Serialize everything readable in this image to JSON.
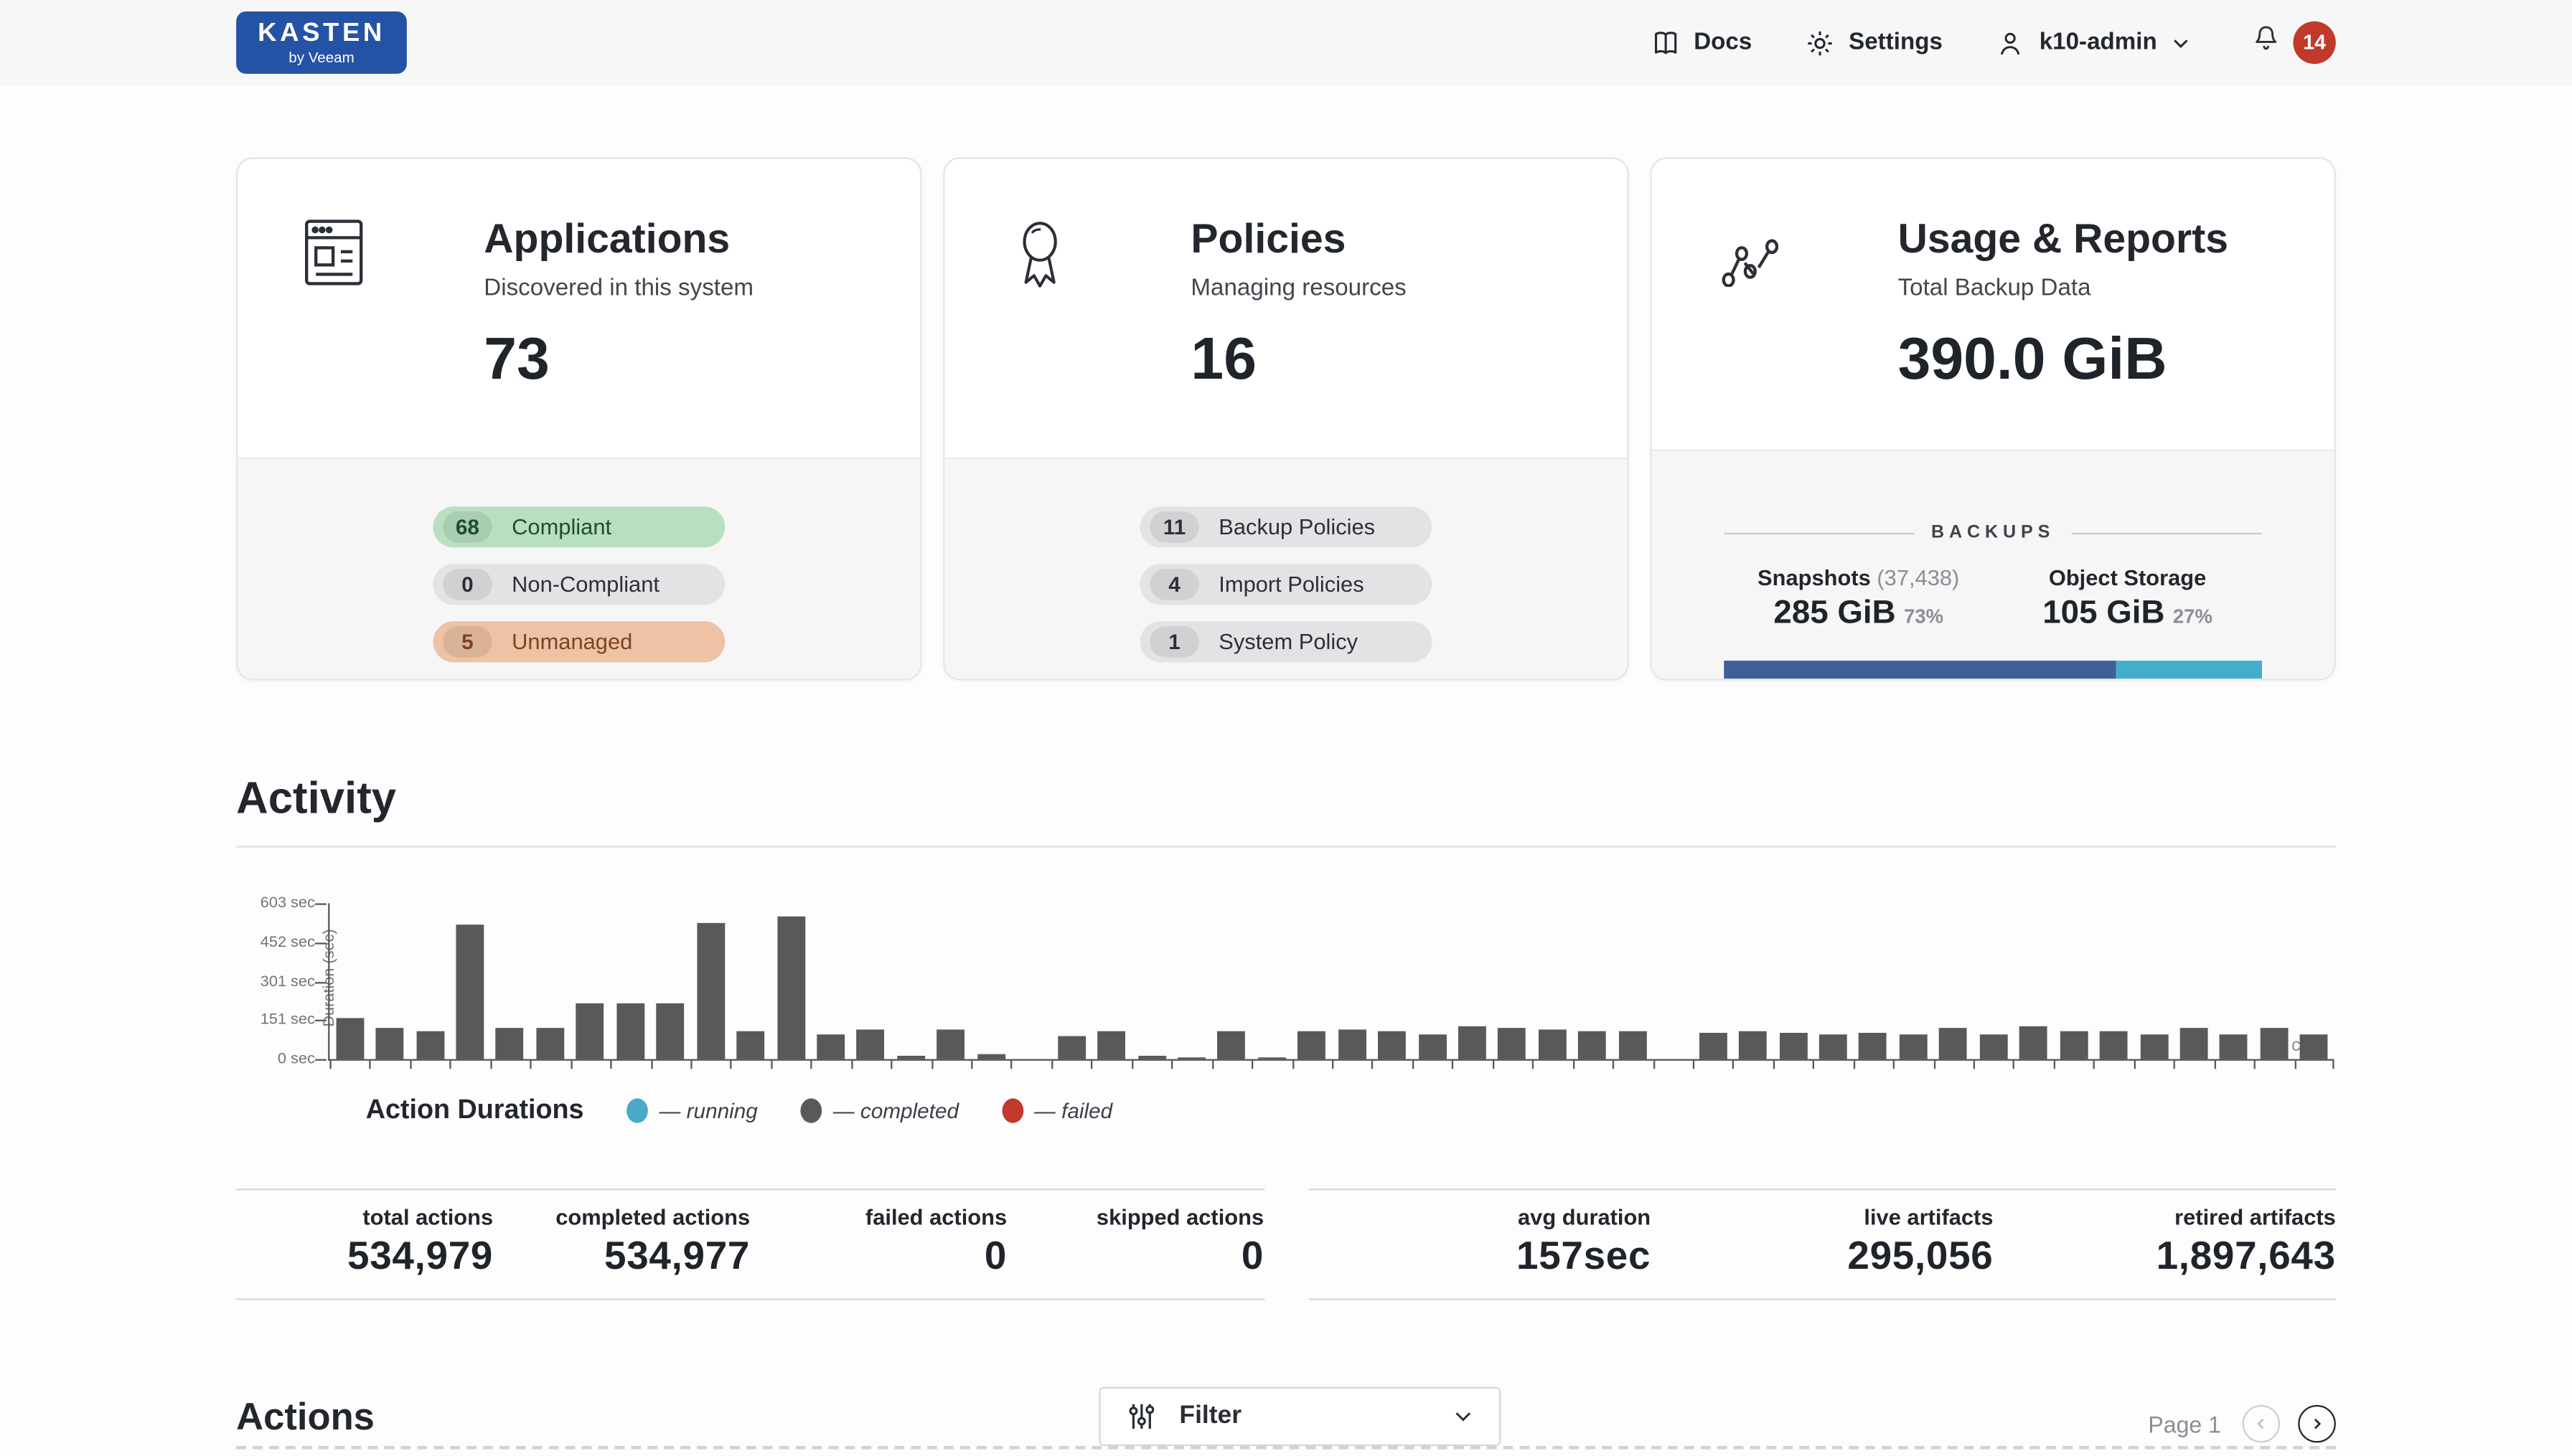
{
  "colors": {
    "brand_blue": "#2453a6",
    "badge_red": "#c0392b",
    "bar_grey": "#595959",
    "running_blue": "#4aa8c9",
    "failed_red": "#c0392b",
    "snapshots_bar": "#3d5e97",
    "object_storage_bar": "#44adcb"
  },
  "header": {
    "logo_line1": "KASTEN",
    "logo_line2": "by Veeam",
    "docs_label": "Docs",
    "settings_label": "Settings",
    "user_label": "k10-admin",
    "notification_count": "14"
  },
  "cards": {
    "applications": {
      "title": "Applications",
      "subtitle": "Discovered in this system",
      "count": "73",
      "badges": [
        {
          "count": "68",
          "label": "Compliant"
        },
        {
          "count": "0",
          "label": "Non-Compliant"
        },
        {
          "count": "5",
          "label": "Unmanaged"
        }
      ]
    },
    "policies": {
      "title": "Policies",
      "subtitle": "Managing resources",
      "count": "16",
      "badges": [
        {
          "count": "11",
          "label": "Backup Policies"
        },
        {
          "count": "4",
          "label": "Import Policies"
        },
        {
          "count": "1",
          "label": "System Policy"
        }
      ]
    },
    "usage": {
      "title": "Usage & Reports",
      "subtitle": "Total Backup Data",
      "count": "390.0 GiB",
      "section_label": "BACKUPS",
      "snapshots_label": "Snapshots",
      "snapshots_sublabel": "(37,438)",
      "snapshots_value": "285 GiB",
      "snapshots_percent": "73%",
      "object_label": "Object Storage",
      "object_value": "105 GiB",
      "object_percent": "27%"
    }
  },
  "activity": {
    "title": "Activity",
    "stats_left": [
      {
        "label": "total actions",
        "value": "534,979"
      },
      {
        "label": "completed actions",
        "value": "534,977"
      },
      {
        "label": "failed actions",
        "value": "0"
      },
      {
        "label": "skipped actions",
        "value": "0"
      }
    ],
    "stats_right": [
      {
        "label": "avg duration",
        "value": "157sec"
      },
      {
        "label": "live artifacts",
        "value": "295,056"
      },
      {
        "label": "retired artifacts",
        "value": "1,897,643"
      }
    ]
  },
  "chart_data": {
    "type": "bar",
    "title": "Action Durations",
    "ylabel": "Duration (sec)",
    "ylim": [
      0,
      603
    ],
    "yticks": [
      "603 sec",
      "452 sec",
      "301 sec",
      "151 sec",
      "0 sec"
    ],
    "grid": false,
    "legend_position": "bottom",
    "legend": [
      {
        "label": "— running",
        "color": "#4aa8c9"
      },
      {
        "label": "— completed",
        "color": "#595959"
      },
      {
        "label": "— failed",
        "color": "#c0392b"
      }
    ],
    "series": [
      {
        "name": "completed",
        "color": "#595959",
        "values": [
          158,
          118,
          108,
          520,
          118,
          118,
          215,
          215,
          215,
          525,
          105,
          550,
          98,
          115,
          15,
          112,
          18,
          0,
          90,
          110,
          14,
          8,
          110,
          8,
          105,
          112,
          108,
          98,
          125,
          118,
          112,
          108,
          108,
          0,
          100,
          105,
          100,
          98,
          100,
          95,
          118,
          95,
          130,
          108,
          105,
          95,
          120,
          95,
          118,
          95
        ]
      }
    ],
    "x_axis_artifact": "ct"
  },
  "actions": {
    "title": "Actions",
    "filter_label": "Filter",
    "page_label": "Page 1"
  }
}
